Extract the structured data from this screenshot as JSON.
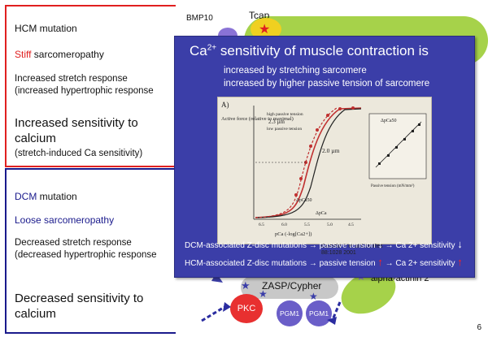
{
  "top_panel": {
    "hcm_mutation": "HCM  mutation",
    "stiff_word": "Stiff",
    "stiff_rest": " sarcomeropathy",
    "stretch_line1": "Increased stretch response",
    "stretch_line2": "(increased hypertrophic response",
    "sensitivity_line1": "Increased sensitivity to",
    "sensitivity_line2": "calcium",
    "stretch_note": "(stretch-induced Ca sensitivity)"
  },
  "bottom_panel": {
    "dcm_word": "DCM",
    "dcm_rest": " mutation",
    "loose": "Loose sarcomeropathy",
    "stretch_line1": "Decreased stretch response",
    "stretch_line2": "(decreased hypertrophic response",
    "sensitivity_line1": "Decreased sensitivity to",
    "sensitivity_line2": "calcium"
  },
  "overlay": {
    "title_pre": "Ca",
    "title_sup": "2+",
    "title_post": " sensitivity of muscle contraction is",
    "sub1": "increased by stretching sarcomere",
    "sub2": "increased by higher passive tension of sarcomere",
    "citation_line1": "Cazorla O et al Circ Res",
    "citation_line2": "88:1028 2001",
    "dcm_text1": "DCM-associated Z-disc mutations → passive tension",
    "dcm_text2": "→  Ca 2+ sensitivity",
    "hcm_text1": "HCM-associated Z-disc mutations → passive tension",
    "hcm_text2": "→  Ca 2+ sensitivity"
  },
  "graph": {
    "panel_label": "A)",
    "ylabel": "Active force (relative to maximal)",
    "legend_high": "high passive tension",
    "legend_low": "low passive tension",
    "sl_23": "2.3 µm",
    "sl_20": "2.0 µm",
    "delta": "ΔpCa",
    "delta50": "ΔpCa50",
    "xlabel": "pCa (-log[Ca2+])",
    "x_ticks": [
      "6.5",
      "6.0",
      "5.5",
      "5.0",
      "4.5"
    ],
    "inset_ylabel": "ΔpCa50",
    "inset_xlabel": "Passive tension (mN/mm²)"
  },
  "diagram": {
    "bmp10": "BMP10",
    "tcap": "Tcap",
    "zasp": "ZASP/Cypher",
    "alpha_actinin": "alpha-actinin 2",
    "pkc": "PKC",
    "pgm1_a": "PGM1",
    "pgm1_b": "PGM1"
  },
  "page_number": "6",
  "colors": {
    "hcm_border": "#e02020",
    "dcm_border": "#1a1a8c",
    "overlay_bg": "#3b3ea8",
    "up_arrow": "#ff2020",
    "down_arrow": "#ffffff"
  }
}
